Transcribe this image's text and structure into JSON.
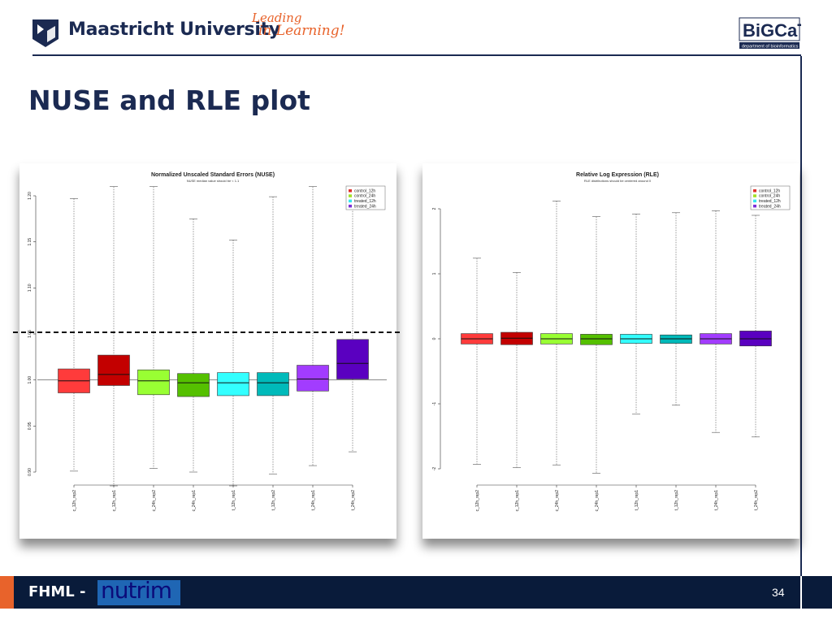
{
  "header": {
    "university_name": "Maastricht University",
    "slogan_line1": "Leading",
    "slogan_line2": "in Learning!",
    "partner_logo_text": "BiGCaT",
    "partner_subtitle": "department of bioinformatics"
  },
  "slide": {
    "title": "NUSE and RLE plot",
    "page_number": "34"
  },
  "footer": {
    "label": "FHML -",
    "logo_text": "nutrim"
  },
  "colors": {
    "navy": "#1b2a52",
    "orange": "#e8632b",
    "footer_bg": "#091b3a"
  },
  "chart_data": [
    {
      "type": "boxplot",
      "title": "Normalized Unscaled Standard Errors (NUSE)",
      "subtitle": "NUSE median value should be < 1.1",
      "categories": [
        "c_12h_rep2",
        "c_12h_rep1",
        "c_24h_rep2",
        "c_24h_rep1",
        "t_12h_rep1",
        "t_12h_rep2",
        "t_24h_rep1",
        "t_24h_rep2"
      ],
      "colors": [
        "#ff3b3b",
        "#c30000",
        "#99ff33",
        "#55c000",
        "#33ffff",
        "#00baba",
        "#a23cff",
        "#5a00c0"
      ],
      "boxes": [
        {
          "whisker_low": 0.901,
          "q1": 0.986,
          "median": 0.999,
          "q3": 1.012,
          "whisker_high": 1.197
        },
        {
          "whisker_low": 0.885,
          "q1": 0.994,
          "median": 1.006,
          "q3": 1.027,
          "whisker_high": 1.21
        },
        {
          "whisker_low": 0.904,
          "q1": 0.984,
          "median": 0.999,
          "q3": 1.011,
          "whisker_high": 1.21
        },
        {
          "whisker_low": 0.9,
          "q1": 0.982,
          "median": 0.997,
          "q3": 1.007,
          "whisker_high": 1.175
        },
        {
          "whisker_low": 0.885,
          "q1": 0.983,
          "median": 0.997,
          "q3": 1.008,
          "whisker_high": 1.152
        },
        {
          "whisker_low": 0.898,
          "q1": 0.983,
          "median": 0.997,
          "q3": 1.008,
          "whisker_high": 1.199
        },
        {
          "whisker_low": 0.907,
          "q1": 0.988,
          "median": 1.001,
          "q3": 1.016,
          "whisker_high": 1.21
        },
        {
          "whisker_low": 0.922,
          "q1": 1.001,
          "median": 1.018,
          "q3": 1.044,
          "whisker_high": 1.21
        }
      ],
      "yticks": [
        "0.90",
        "0.95",
        "1.00",
        "1.05",
        "1.10",
        "1.15",
        "1.20"
      ],
      "ylim": [
        0.9,
        1.2
      ],
      "reference_line": 1.0,
      "legend": [
        "control_12h",
        "control_24h",
        "treated_12h",
        "treated_24h"
      ],
      "legend_colors": [
        "#e0302b",
        "#a3e024",
        "#36e8f0",
        "#7a2fd8"
      ],
      "legend_position": "top-right"
    },
    {
      "type": "boxplot",
      "title": "Relative Log Expression (RLE)",
      "subtitle": "RLE distributions should be centered around 0",
      "categories": [
        "c_12h_rep2",
        "c_12h_rep1",
        "c_24h_rep2",
        "c_24h_rep1",
        "t_12h_rep1",
        "t_12h_rep2",
        "t_24h_rep1",
        "t_24h_rep2"
      ],
      "colors": [
        "#ff3b3b",
        "#c30000",
        "#99ff33",
        "#55c000",
        "#33ffff",
        "#00baba",
        "#a23cff",
        "#5a00c0"
      ],
      "boxes": [
        {
          "whisker_low": -1.93,
          "q1": -0.08,
          "median": 0.0,
          "q3": 0.08,
          "whisker_high": 1.24
        },
        {
          "whisker_low": -1.98,
          "q1": -0.09,
          "median": 0.01,
          "q3": 0.1,
          "whisker_high": 1.02
        },
        {
          "whisker_low": -1.94,
          "q1": -0.08,
          "median": 0.0,
          "q3": 0.08,
          "whisker_high": 2.12
        },
        {
          "whisker_low": -2.07,
          "q1": -0.09,
          "median": 0.0,
          "q3": 0.07,
          "whisker_high": 1.88
        },
        {
          "whisker_low": -1.16,
          "q1": -0.07,
          "median": 0.0,
          "q3": 0.07,
          "whisker_high": 1.92
        },
        {
          "whisker_low": -1.02,
          "q1": -0.07,
          "median": 0.0,
          "q3": 0.06,
          "whisker_high": 1.94
        },
        {
          "whisker_low": -1.44,
          "q1": -0.08,
          "median": 0.0,
          "q3": 0.08,
          "whisker_high": 1.97
        },
        {
          "whisker_low": -1.51,
          "q1": -0.11,
          "median": 0.0,
          "q3": 0.12,
          "whisker_high": 1.9
        }
      ],
      "yticks": [
        "-2",
        "-1",
        "0",
        "1",
        "2"
      ],
      "ylim": [
        -2.1,
        2.2
      ],
      "legend": [
        "control_12h",
        "control_24h",
        "treated_12h",
        "treated_24h"
      ],
      "legend_colors": [
        "#e0302b",
        "#a3e024",
        "#36e8f0",
        "#7a2fd8"
      ],
      "legend_position": "top-right"
    }
  ]
}
